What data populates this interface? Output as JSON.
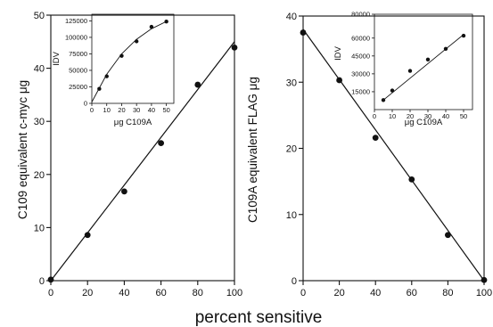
{
  "figure": {
    "xlabel": "percent sensitive"
  },
  "chart_data": [
    {
      "type": "scatter",
      "title": "",
      "ylabel": "C109 equivalent c-myc  μg",
      "xlim": [
        0,
        100
      ],
      "ylim": [
        0,
        50
      ],
      "xticks": [
        "0",
        "20",
        "40",
        "60",
        "80",
        "100"
      ],
      "yticks": [
        "0",
        "10",
        "20",
        "30",
        "40",
        "50"
      ],
      "x": [
        0,
        20,
        40,
        60,
        80,
        100
      ],
      "y": [
        0.2,
        8.6,
        16.8,
        25.9,
        36.9,
        43.9
      ],
      "fit_line": {
        "x": [
          0,
          100
        ],
        "y": [
          0,
          45
        ]
      }
    },
    {
      "type": "scatter",
      "title": "",
      "ylabel": "C109A equivalent FLAG  μg",
      "xlim": [
        0,
        100
      ],
      "ylim": [
        0,
        40
      ],
      "xticks": [
        "0",
        "20",
        "40",
        "60",
        "80",
        "100"
      ],
      "yticks": [
        "0",
        "10",
        "20",
        "30",
        "40"
      ],
      "x": [
        0,
        20,
        40,
        60,
        80,
        100
      ],
      "y": [
        37.5,
        30.3,
        21.6,
        15.3,
        6.9,
        0.1
      ],
      "fit_line": {
        "x": [
          0,
          100
        ],
        "y": [
          38,
          0
        ]
      }
    },
    {
      "type": "scatter",
      "title": "",
      "xlabel": "μg C109A",
      "ylabel": "IDV",
      "xlim": [
        0,
        55
      ],
      "ylim": [
        0,
        135000
      ],
      "xticks": [
        "0",
        "10",
        "20",
        "30",
        "40",
        "50"
      ],
      "yticks": [
        "0",
        "25000",
        "50000",
        "75000",
        "100000",
        "125000"
      ],
      "x": [
        5,
        10,
        20,
        30,
        40,
        50
      ],
      "y": [
        22000,
        41000,
        72000,
        94000,
        116000,
        124000
      ],
      "fit_curve": {
        "x": [
          0,
          10,
          20,
          30,
          40,
          50
        ],
        "y": [
          2000,
          44000,
          75000,
          97000,
          113000,
          124000
        ]
      }
    },
    {
      "type": "scatter",
      "title": "",
      "xlabel": "μg C109A",
      "ylabel": "IDV",
      "xlim": [
        0,
        55
      ],
      "ylim": [
        0,
        80000
      ],
      "xticks": [
        "0",
        "10",
        "20",
        "30",
        "40",
        "50"
      ],
      "yticks": [
        "15000",
        "30000",
        "45000",
        "60000",
        "80000"
      ],
      "x": [
        5,
        10,
        20,
        30,
        40,
        50
      ],
      "y": [
        8000,
        16000,
        32500,
        42000,
        51000,
        62000
      ],
      "fit_line": {
        "x": [
          5,
          50
        ],
        "y": [
          8000,
          63000
        ]
      }
    }
  ]
}
